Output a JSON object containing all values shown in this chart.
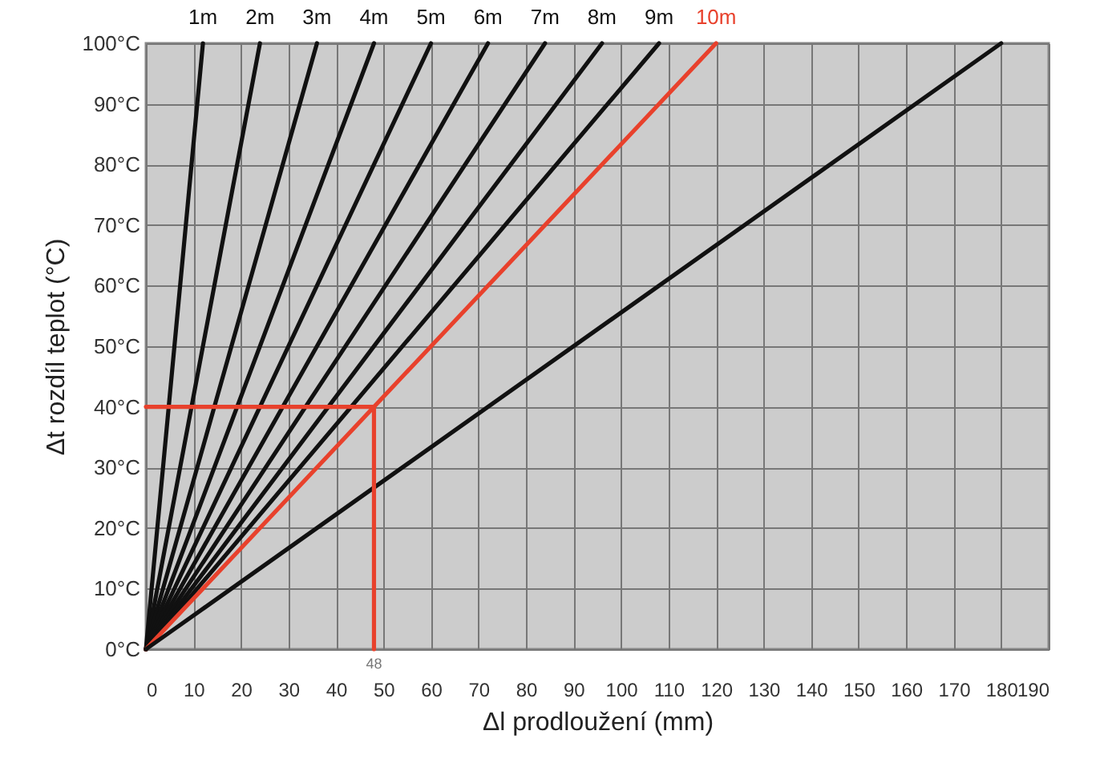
{
  "chart_data": {
    "type": "line",
    "xlabel": "Δl prodloužení (mm)",
    "ylabel": "Δt rozdíl teplot (°C)",
    "xlim": [
      0,
      190
    ],
    "ylim": [
      0,
      100
    ],
    "xticks": [
      0,
      10,
      20,
      30,
      40,
      50,
      60,
      70,
      80,
      90,
      100,
      110,
      120,
      130,
      140,
      150,
      160,
      170,
      180,
      190
    ],
    "yticks": [
      {
        "value": 0,
        "label": "0°C"
      },
      {
        "value": 10,
        "label": "10°C"
      },
      {
        "value": 20,
        "label": "20°C"
      },
      {
        "value": 30,
        "label": "30°C"
      },
      {
        "value": 40,
        "label": "40°C"
      },
      {
        "value": 50,
        "label": "50°C"
      },
      {
        "value": 60,
        "label": "60°C"
      },
      {
        "value": 70,
        "label": "70°C"
      },
      {
        "value": 80,
        "label": "80°C"
      },
      {
        "value": 90,
        "label": "90°C"
      },
      {
        "value": 100,
        "label": "100°C"
      }
    ],
    "grid": true,
    "marker": "none",
    "line_style": "solid",
    "series": [
      {
        "name": "1m",
        "color": "#111111",
        "x": [
          0,
          12
        ],
        "values": [
          0,
          100
        ]
      },
      {
        "name": "2m",
        "color": "#111111",
        "x": [
          0,
          24
        ],
        "values": [
          0,
          100
        ]
      },
      {
        "name": "3m",
        "color": "#111111",
        "x": [
          0,
          36
        ],
        "values": [
          0,
          100
        ]
      },
      {
        "name": "4m",
        "color": "#111111",
        "x": [
          0,
          48
        ],
        "values": [
          0,
          100
        ]
      },
      {
        "name": "5m",
        "color": "#111111",
        "x": [
          0,
          60
        ],
        "values": [
          0,
          100
        ]
      },
      {
        "name": "6m",
        "color": "#111111",
        "x": [
          0,
          72
        ],
        "values": [
          0,
          100
        ]
      },
      {
        "name": "7m",
        "color": "#111111",
        "x": [
          0,
          84
        ],
        "values": [
          0,
          100
        ]
      },
      {
        "name": "8m",
        "color": "#111111",
        "x": [
          0,
          96
        ],
        "values": [
          0,
          100
        ]
      },
      {
        "name": "9m",
        "color": "#111111",
        "x": [
          0,
          108
        ],
        "values": [
          0,
          100
        ]
      },
      {
        "name": "10m",
        "color": "#e8412c",
        "x": [
          0,
          120
        ],
        "values": [
          0,
          100
        ]
      },
      {
        "color": "#111111",
        "x": [
          0,
          180
        ],
        "values": [
          0,
          100
        ]
      },
      {
        "color": "#e8412c",
        "x": [
          0,
          48,
          48
        ],
        "values": [
          40,
          40,
          0
        ]
      }
    ],
    "annotations": [
      {
        "text": "48",
        "x": 48,
        "y": 0
      }
    ]
  }
}
